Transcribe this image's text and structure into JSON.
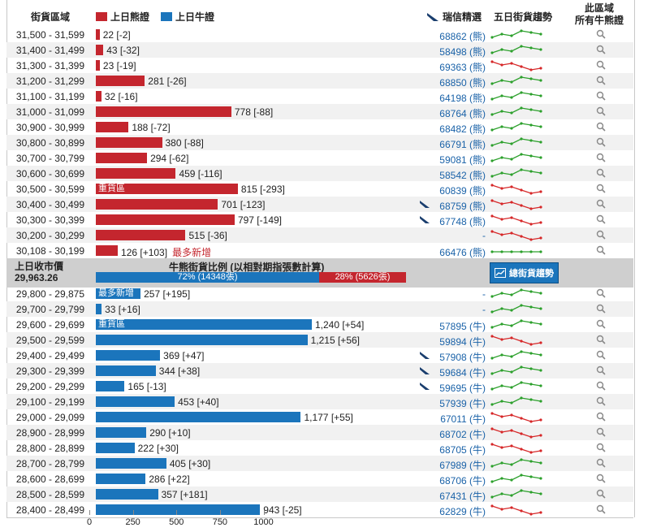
{
  "header": {
    "range_label": "街貨區域",
    "bear_legend": "上日熊證",
    "bull_legend": "上日牛證",
    "ubs_label": "瑞信精選",
    "trend_label": "五日街貨趨勢",
    "area_label_1": "此區域",
    "area_label_2": "所有牛熊證"
  },
  "colors": {
    "bear": "#c4262e",
    "bull": "#1b75bc",
    "up": "#2ca02c",
    "down": "#d62728"
  },
  "bear_rows": [
    {
      "range": "31,500 - 31,599",
      "value": 22,
      "label": "22 [-2]",
      "code": "68862 (熊)",
      "ubs": false,
      "trend": "up"
    },
    {
      "range": "31,400 - 31,499",
      "value": 43,
      "label": "43 [-32]",
      "code": "58498 (熊)",
      "ubs": false,
      "trend": "up"
    },
    {
      "range": "31,300 - 31,399",
      "value": 23,
      "label": "23 [-19]",
      "code": "69363 (熊)",
      "ubs": false,
      "trend": "down"
    },
    {
      "range": "31,200 - 31,299",
      "value": 281,
      "label": "281 [-26]",
      "code": "68850 (熊)",
      "ubs": false,
      "trend": "up"
    },
    {
      "range": "31,100 - 31,199",
      "value": 32,
      "label": "32 [-16]",
      "code": "64198 (熊)",
      "ubs": false,
      "trend": "up"
    },
    {
      "range": "31,000 - 31,099",
      "value": 778,
      "label": "778 [-88]",
      "code": "68764 (熊)",
      "ubs": false,
      "trend": "up"
    },
    {
      "range": "30,900 - 30,999",
      "value": 188,
      "label": "188 [-72]",
      "code": "68482 (熊)",
      "ubs": false,
      "trend": "up"
    },
    {
      "range": "30,800 - 30,899",
      "value": 380,
      "label": "380 [-88]",
      "code": "66791 (熊)",
      "ubs": false,
      "trend": "up"
    },
    {
      "range": "30,700 - 30,799",
      "value": 294,
      "label": "294 [-62]",
      "code": "59081 (熊)",
      "ubs": false,
      "trend": "up"
    },
    {
      "range": "30,600 - 30,699",
      "value": 459,
      "label": "459 [-116]",
      "code": "58542 (熊)",
      "ubs": false,
      "trend": "up"
    },
    {
      "range": "30,500 - 30,599",
      "value": 815,
      "label": "815 [-293]",
      "code": "60839 (熊)",
      "ubs": false,
      "trend": "down",
      "tag": "重貨區"
    },
    {
      "range": "30,400 - 30,499",
      "value": 701,
      "label": "701 [-123]",
      "code": "68759 (熊)",
      "ubs": true,
      "trend": "down"
    },
    {
      "range": "30,300 - 30,399",
      "value": 797,
      "label": "797 [-149]",
      "code": "67748 (熊)",
      "ubs": true,
      "trend": "down"
    },
    {
      "range": "30,200 - 30,299",
      "value": 515,
      "label": "515 [-36]",
      "code": "-",
      "ubs": false,
      "trend": "down"
    },
    {
      "range": "30,108 - 30,199",
      "value": 126,
      "label": "126 [+103]",
      "code": "66476 (熊)",
      "ubs": false,
      "trend": "flat",
      "new": "最多新增"
    }
  ],
  "mid": {
    "prev_close_label": "上日收市價",
    "prev_close": "29,963.26",
    "ratio_title": "牛熊街貨比例 (以相對期指張數計算)",
    "bull_pct": "72% (14348張)",
    "bear_pct": "28% (5626張)",
    "bull_frac": 0.72,
    "button": "總街貨趨勢"
  },
  "bull_rows": [
    {
      "range": "29,800 - 29,875",
      "value": 257,
      "label": "257 [+195]",
      "code": "-",
      "ubs": false,
      "trend": "up",
      "tag": "最多新增"
    },
    {
      "range": "29,700 - 29,799",
      "value": 33,
      "label": "33 [+16]",
      "code": "-",
      "ubs": false,
      "trend": "up"
    },
    {
      "range": "29,600 - 29,699",
      "value": 1240,
      "label": "1,240 [+54]",
      "code": "57895 (牛)",
      "ubs": false,
      "trend": "up",
      "tag": "重貨區"
    },
    {
      "range": "29,500 - 29,599",
      "value": 1215,
      "label": "1,215 [+56]",
      "code": "59894 (牛)",
      "ubs": false,
      "trend": "down"
    },
    {
      "range": "29,400 - 29,499",
      "value": 369,
      "label": "369 [+47]",
      "code": "57908 (牛)",
      "ubs": true,
      "trend": "up"
    },
    {
      "range": "29,300 - 29,399",
      "value": 344,
      "label": "344 [+38]",
      "code": "59684 (牛)",
      "ubs": true,
      "trend": "up"
    },
    {
      "range": "29,200 - 29,299",
      "value": 165,
      "label": "165 [-13]",
      "code": "59695 (牛)",
      "ubs": true,
      "trend": "up"
    },
    {
      "range": "29,100 - 29,199",
      "value": 453,
      "label": "453 [+40]",
      "code": "57939 (牛)",
      "ubs": false,
      "trend": "up"
    },
    {
      "range": "29,000 - 29,099",
      "value": 1177,
      "label": "1,177 [+55]",
      "code": "67011 (牛)",
      "ubs": false,
      "trend": "down"
    },
    {
      "range": "28,900 - 28,999",
      "value": 290,
      "label": "290 [+10]",
      "code": "68702 (牛)",
      "ubs": false,
      "trend": "down"
    },
    {
      "range": "28,800 - 28,899",
      "value": 222,
      "label": "222 [+30]",
      "code": "68705 (牛)",
      "ubs": false,
      "trend": "down"
    },
    {
      "range": "28,700 - 28,799",
      "value": 405,
      "label": "405 [+30]",
      "code": "67989 (牛)",
      "ubs": false,
      "trend": "up"
    },
    {
      "range": "28,600 - 28,699",
      "value": 286,
      "label": "286 [+22]",
      "code": "68706 (牛)",
      "ubs": false,
      "trend": "up"
    },
    {
      "range": "28,500 - 28,599",
      "value": 357,
      "label": "357 [+181]",
      "code": "67431 (牛)",
      "ubs": false,
      "trend": "up"
    },
    {
      "range": "28,400 - 28,499",
      "value": 943,
      "label": "943 [-25]",
      "code": "62829 (牛)",
      "ubs": false,
      "trend": "down"
    }
  ],
  "axis": {
    "ticks": [
      "0",
      "250",
      "500",
      "750",
      "1000"
    ],
    "tick_values": [
      0,
      250,
      500,
      750,
      1000
    ]
  }
}
